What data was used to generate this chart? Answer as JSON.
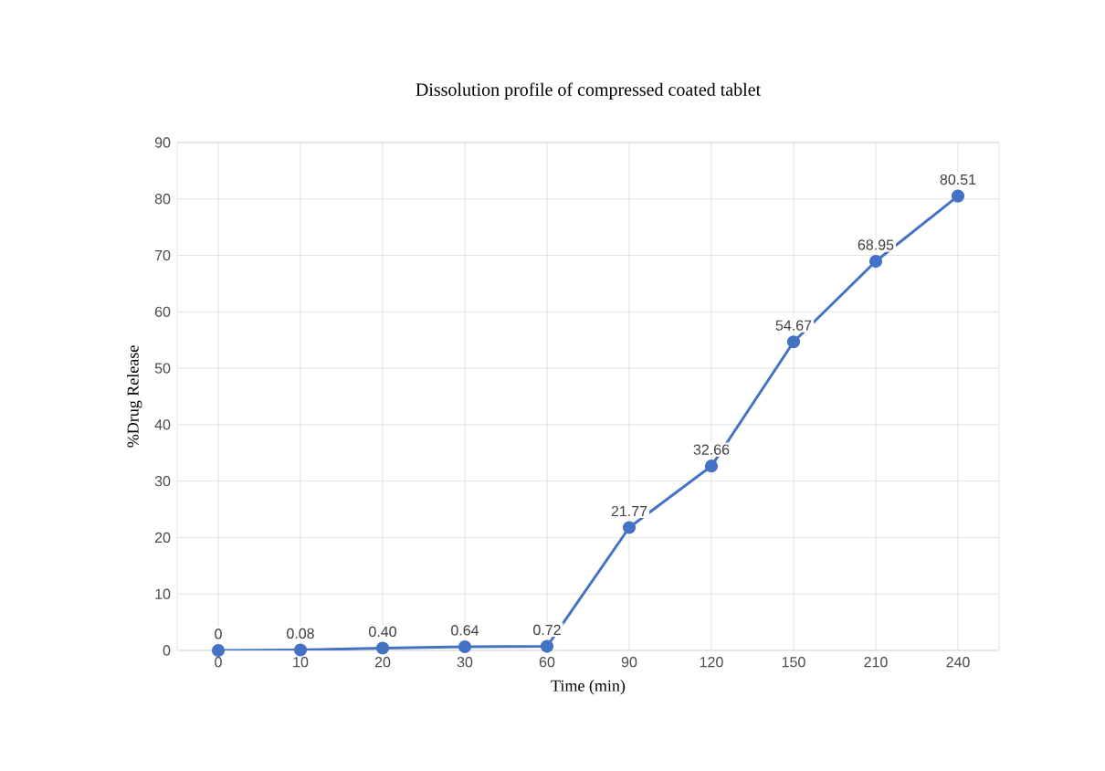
{
  "chart_data": {
    "type": "line",
    "title": "Dissolution profile of compressed coated tablet",
    "xlabel": "Time (min)",
    "ylabel": "%Drug Release",
    "categories": [
      "0",
      "10",
      "20",
      "30",
      "60",
      "90",
      "120",
      "150",
      "210",
      "240"
    ],
    "values": [
      0,
      0.08,
      0.4,
      0.64,
      0.72,
      21.77,
      32.66,
      54.67,
      68.95,
      80.51
    ],
    "value_labels": [
      "0",
      "0.08",
      "0.40",
      "0.64",
      "0.72",
      "21.77",
      "32.66",
      "54.67",
      "68.95",
      "80.51"
    ],
    "color": "#4472c4",
    "ylim": [
      0,
      90
    ],
    "yticks": [
      0,
      10,
      20,
      30,
      40,
      50,
      60,
      70,
      80,
      90
    ],
    "grid": true,
    "marker": "circle",
    "line_style": "solid"
  }
}
